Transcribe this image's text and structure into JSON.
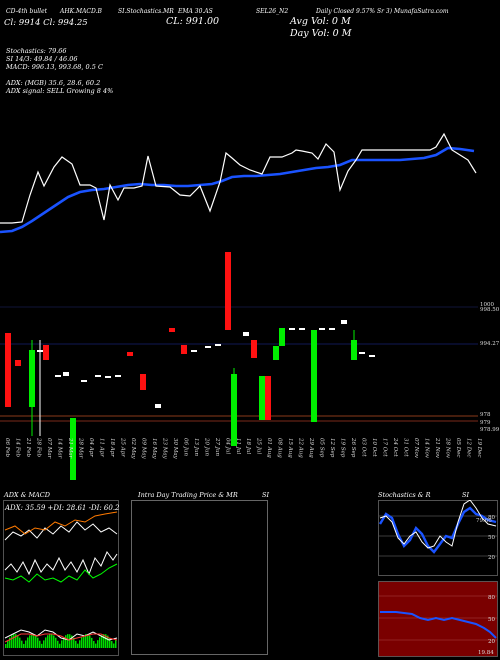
{
  "header": {
    "items": [
      "CD-4th bullet",
      "AHK.MACD.B",
      "SI.Stochastics.MR",
      "EMA 30.AS",
      "SEL26_N2",
      "Daily Closed 9.57% Sr 3) MunafaSutra.com"
    ],
    "open_low": "Cl: 9914  Cl: 994.25",
    "close": "CL: 991.00",
    "avg_vol": "Avg Vol: 0  M",
    "day_vol": "Day Vol: 0   M"
  },
  "indicators": {
    "stochastics": "Stochastics: 79.66",
    "si": "SI 14/3: 49.84  / 46.06",
    "macd": "MACD: 996.13,  993.68,  0.5 C",
    "adx": "ADX:                     (MGB) 35.6,  28.6,  60.2",
    "adx_signal": "ADX  signal: SELL Growing 8 4%"
  },
  "chart_data": {
    "type": "candlestick",
    "price_labels": [
      "1000",
      "998.50",
      "994.27",
      "978",
      "979",
      "978.99"
    ],
    "x_labels": [
      "06 Feb",
      "14 Feb",
      "21 Feb",
      "28 Feb",
      "07 Mar",
      "14 Mar",
      "21 Mar",
      "28 Mar",
      "04 Apr",
      "11 Apr",
      "18 Apr",
      "25 Apr",
      "02 May",
      "09 May",
      "16 May",
      "23 May",
      "30 May",
      "06 Jun",
      "13 Jun",
      "20 Jun",
      "27 Jun",
      "04 Jul",
      "11 Jul",
      "18 Jul",
      "25 Jul",
      "01 Aug",
      "08 Aug",
      "15 Aug",
      "22 Aug",
      "29 Aug",
      "05 Sep",
      "12 Sep",
      "19 Sep",
      "26 Sep",
      "03 Oct",
      "10 Oct",
      "17 Oct",
      "24 Oct",
      "31 Oct",
      "07 Nov",
      "14 Nov",
      "21 Nov",
      "28 Nov",
      "05 Dec",
      "12 Dec",
      "19 Dec"
    ]
  },
  "panels": {
    "adx_title": "ADX  & MACD",
    "adx_values": "ADX: 35.59 +DI: 28.61 -DI: 60.24",
    "intraday_title": "Intra  Day Trading Price  & MR",
    "si_label": "SI",
    "stoch_title": "Stochastics & R",
    "stoch_si": "SI",
    "stoch_levels": [
      "80",
      "50",
      "20"
    ],
    "stoch_value": "79.66",
    "rsi_levels": [
      "80",
      "50",
      "20"
    ],
    "rsi_value": "19.84"
  },
  "colors": {
    "bull": "#00ee00",
    "bear": "#ff1111",
    "ema": "#1a53ff",
    "price": "#ffffff"
  }
}
